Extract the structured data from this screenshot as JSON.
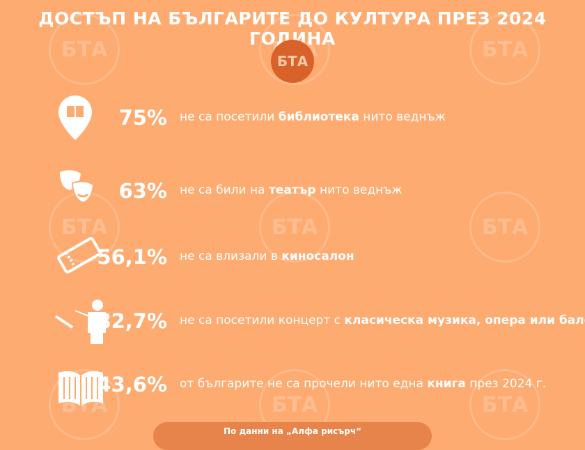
{
  "header": {
    "title": "ДОСТЪП НА БЪЛГАРИТЕ ДО КУЛТУРА ПРЕЗ 2024 ГОДИНА",
    "logo": "БТА"
  },
  "items": [
    {
      "stat": "75%",
      "before": "не са посетили ",
      "emphasis": "библиотека",
      "after": " нито веднъж"
    },
    {
      "stat": "63%",
      "before": "не са били на ",
      "emphasis": "театър",
      "after": " нито веднъж"
    },
    {
      "stat": "56,1%",
      "before": "не са влизали в ",
      "emphasis": "киносалон"
    },
    {
      "stat": "82,7%",
      "before": "не са посетили концерт с ",
      "emphasis": "класическа музика, опера или балет"
    },
    {
      "stat": "43,6%",
      "before": "от българите не са прочели нито една ",
      "emphasis": "книга",
      "after": " през 2024 г."
    }
  ],
  "footer": {
    "source": "По данни на „Алфа рисърч“"
  }
}
